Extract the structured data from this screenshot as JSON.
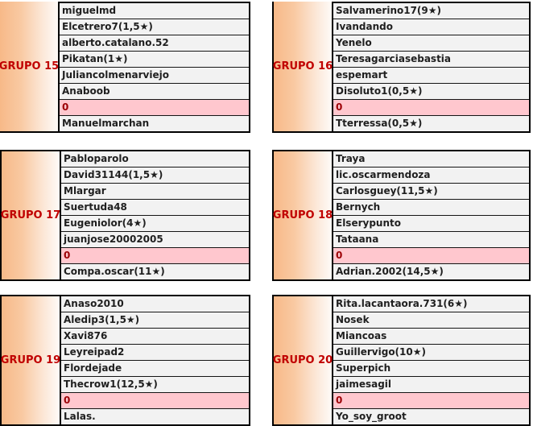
{
  "colors": {
    "group_label_text": "#C00000",
    "member_text": "#1F1F1F",
    "member_row_bg": "#F2F2F2",
    "zero_row_bg": "#FFC7CE",
    "zero_row_text": "#9C0006",
    "label_gradient_left": "#F7B988",
    "label_gradient_right": "#FEFAF7",
    "border": "#000000",
    "page_bg": "#FFFFFF"
  },
  "icons": {
    "star": "★"
  },
  "groups": [
    {
      "label": "GRUPO 15",
      "rows": [
        {
          "text": "miguelmd",
          "highlight": false
        },
        {
          "text": "Elcetrero7(1,5★)",
          "highlight": false
        },
        {
          "text": "alberto.catalano.52",
          "highlight": false
        },
        {
          "text": "Pikatan(1★)",
          "highlight": false
        },
        {
          "text": "Juliancolmenarviejo",
          "highlight": false
        },
        {
          "text": "Anaboob",
          "highlight": false
        },
        {
          "text": "0",
          "highlight": true
        },
        {
          "text": "Manuelmarchan",
          "highlight": false
        }
      ]
    },
    {
      "label": "GRUPO 16",
      "rows": [
        {
          "text": "Salvamerino17(9★)",
          "highlight": false
        },
        {
          "text": "Ivandando",
          "highlight": false
        },
        {
          "text": "Yenelo",
          "highlight": false
        },
        {
          "text": "Teresagarciasebastia",
          "highlight": false
        },
        {
          "text": "espemart",
          "highlight": false
        },
        {
          "text": "Disoluto1(0,5★)",
          "highlight": false
        },
        {
          "text": "0",
          "highlight": true
        },
        {
          "text": "Tterressa(0,5★)",
          "highlight": false
        }
      ]
    },
    {
      "label": "GRUPO 17",
      "rows": [
        {
          "text": "Pabloparolo",
          "highlight": false
        },
        {
          "text": "David31144(1,5★)",
          "highlight": false
        },
        {
          "text": "Mlargar",
          "highlight": false
        },
        {
          "text": "Suertuda48",
          "highlight": false
        },
        {
          "text": "Eugeniolor(4★)",
          "highlight": false
        },
        {
          "text": "juanjose20002005",
          "highlight": false
        },
        {
          "text": "0",
          "highlight": true
        },
        {
          "text": "Compa.oscar(11★)",
          "highlight": false
        }
      ]
    },
    {
      "label": "GRUPO 18",
      "rows": [
        {
          "text": "Traya",
          "highlight": false
        },
        {
          "text": "lic.oscarmendoza",
          "highlight": false
        },
        {
          "text": "Carlosguey(11,5★)",
          "highlight": false
        },
        {
          "text": "Bernych",
          "highlight": false
        },
        {
          "text": "Elserypunto",
          "highlight": false
        },
        {
          "text": "Tataana",
          "highlight": false
        },
        {
          "text": "0",
          "highlight": true
        },
        {
          "text": "Adrian.2002(14,5★)",
          "highlight": false
        }
      ]
    },
    {
      "label": "GRUPO 19",
      "rows": [
        {
          "text": "Anaso2010",
          "highlight": false
        },
        {
          "text": "Aledip3(1,5★)",
          "highlight": false
        },
        {
          "text": "Xavi876",
          "highlight": false
        },
        {
          "text": "Leyreipad2",
          "highlight": false
        },
        {
          "text": "Flordejade",
          "highlight": false
        },
        {
          "text": "Thecrow1(12,5★)",
          "highlight": false
        },
        {
          "text": "0",
          "highlight": true
        },
        {
          "text": "Lalas.",
          "highlight": false
        }
      ]
    },
    {
      "label": "GRUPO 20",
      "rows": [
        {
          "text": "Rita.lacantaora.731(6★)",
          "highlight": false
        },
        {
          "text": "Nosek",
          "highlight": false
        },
        {
          "text": "Miancoas",
          "highlight": false
        },
        {
          "text": "Guillervigo(10★)",
          "highlight": false
        },
        {
          "text": "Superpich",
          "highlight": false
        },
        {
          "text": "jaimesagil",
          "highlight": false
        },
        {
          "text": "0",
          "highlight": true
        },
        {
          "text": "Yo_soy_groot",
          "highlight": false
        }
      ]
    }
  ]
}
